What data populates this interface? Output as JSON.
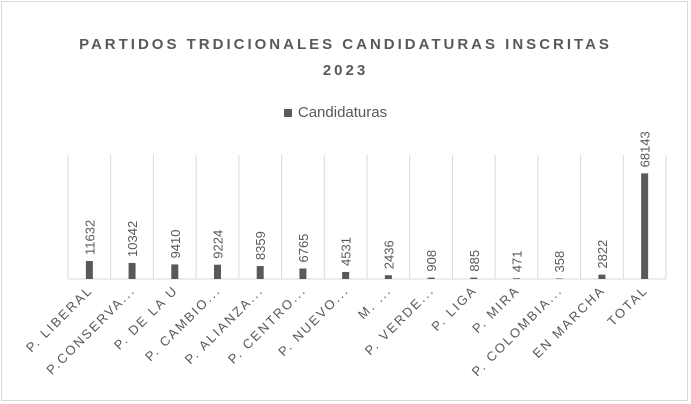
{
  "chart_data": {
    "type": "bar",
    "title_line1": "PARTIDOS TRDICIONALES CANDIDATURAS INSCRITAS",
    "title_line2": "2023",
    "categories": [
      "P. LIBERAL",
      "P.CONSERVA...",
      "P. DE LA U",
      "P. CAMBIO...",
      "P. ALIANZA...",
      "P. CENTRO...",
      "P. NUEVO...",
      "M. ...",
      "P. VERDE...",
      "P. LIGA",
      "P. MIRA",
      "P. COLOMBIA...",
      "EN MARCHA",
      "TOTAL"
    ],
    "series": [
      {
        "name": "Candidaturas",
        "values": [
          11632,
          10342,
          9410,
          9224,
          8359,
          6765,
          4531,
          2436,
          908,
          885,
          471,
          358,
          2822,
          68143
        ],
        "color": "#595959"
      }
    ],
    "xlabel": "",
    "ylabel": "",
    "ylim": [
      0,
      80000
    ],
    "grid": "vertical",
    "legend_position": "top"
  }
}
